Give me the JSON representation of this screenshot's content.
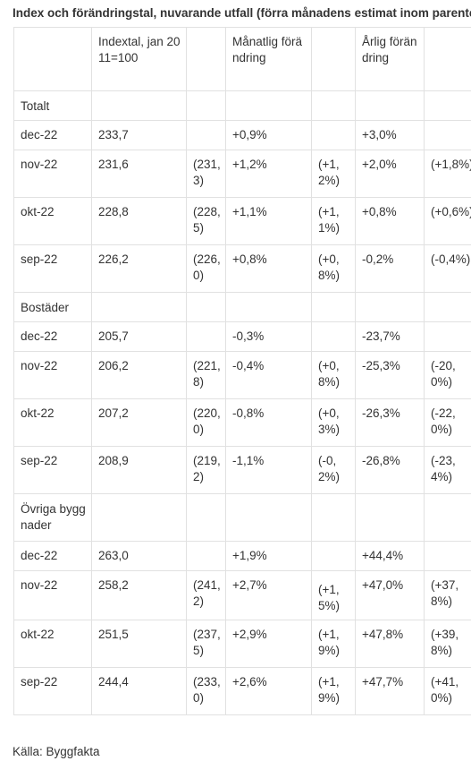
{
  "title": "Index och förändringstal, nuvarande utfall (förra månadens estimat inom parentes)",
  "header": {
    "c0": "",
    "c1": "Indextal, jan 2011=100",
    "c2": "",
    "c3": "Månatlig förändring",
    "c4": "",
    "c5": "Årlig förändring",
    "c6": ""
  },
  "groups": [
    {
      "label": "Totalt",
      "rows": [
        {
          "month": "dec-22",
          "index": "233,7",
          "index_est": "",
          "monthly": "+0,9%",
          "monthly_est": "",
          "yearly": "+3,0%",
          "yearly_est": ""
        },
        {
          "month": "nov-22",
          "index": "231,6",
          "index_est": "(231,3)",
          "monthly": "+1,2%",
          "monthly_est": "(+1,2%)",
          "yearly": "+2,0%",
          "yearly_est": "(+1,8%)"
        },
        {
          "month": "okt-22",
          "index": "228,8",
          "index_est": "(228,5)",
          "monthly": "+1,1%",
          "monthly_est": "(+1,1%)",
          "yearly": "+0,8%",
          "yearly_est": "(+0,6%)"
        },
        {
          "month": "sep-22",
          "index": "226,2",
          "index_est": "(226,0)",
          "monthly": "+0,8%",
          "monthly_est": "(+0,8%)",
          "yearly": "-0,2%",
          "yearly_est": "(-0,4%)"
        }
      ]
    },
    {
      "label": "Bostäder",
      "rows": [
        {
          "month": "dec-22",
          "index": "205,7",
          "index_est": "",
          "monthly": "-0,3%",
          "monthly_est": "",
          "yearly": "-23,7%",
          "yearly_est": ""
        },
        {
          "month": "nov-22",
          "index": "206,2",
          "index_est": "(221,8)",
          "monthly": "-0,4%",
          "monthly_est": "(+0,8%)",
          "yearly": "-25,3%",
          "yearly_est": "(-20,0%)"
        },
        {
          "month": "okt-22",
          "index": "207,2",
          "index_est": "(220,0)",
          "monthly": "-0,8%",
          "monthly_est": "(+0,3%)",
          "yearly": "-26,3%",
          "yearly_est": "(-22,0%)"
        },
        {
          "month": "sep-22",
          "index": "208,9",
          "index_est": "(219,2)",
          "monthly": "-1,1%",
          "monthly_est": "(-0,2%)",
          "yearly": "-26,8%",
          "yearly_est": "(-23,4%)"
        }
      ]
    },
    {
      "label": "Övriga byggnader",
      "rows": [
        {
          "month": "dec-22",
          "index": "263,0",
          "index_est": "",
          "monthly": "+1,9%",
          "monthly_est": "",
          "yearly": "+44,4%",
          "yearly_est": ""
        },
        {
          "month": "nov-22",
          "index": "258,2",
          "index_est": "(241,2)",
          "monthly": "+2,7%",
          "monthly_est": "(+1,5%)",
          "yearly": "+47,0%",
          "yearly_est": "(+37,8%)"
        },
        {
          "month": "okt-22",
          "index": "251,5",
          "index_est": "(237,5)",
          "monthly": "+2,9%",
          "monthly_est": "(+1,9%)",
          "yearly": "+47,8%",
          "yearly_est": "(+39,8%)"
        },
        {
          "month": "sep-22",
          "index": "244,4",
          "index_est": "(233,0)",
          "monthly": "+2,6%",
          "monthly_est": "(+1,9%)",
          "yearly": "+47,7%",
          "yearly_est": "(+41,0%)"
        }
      ]
    }
  ],
  "source": "Källa: Byggfakta"
}
